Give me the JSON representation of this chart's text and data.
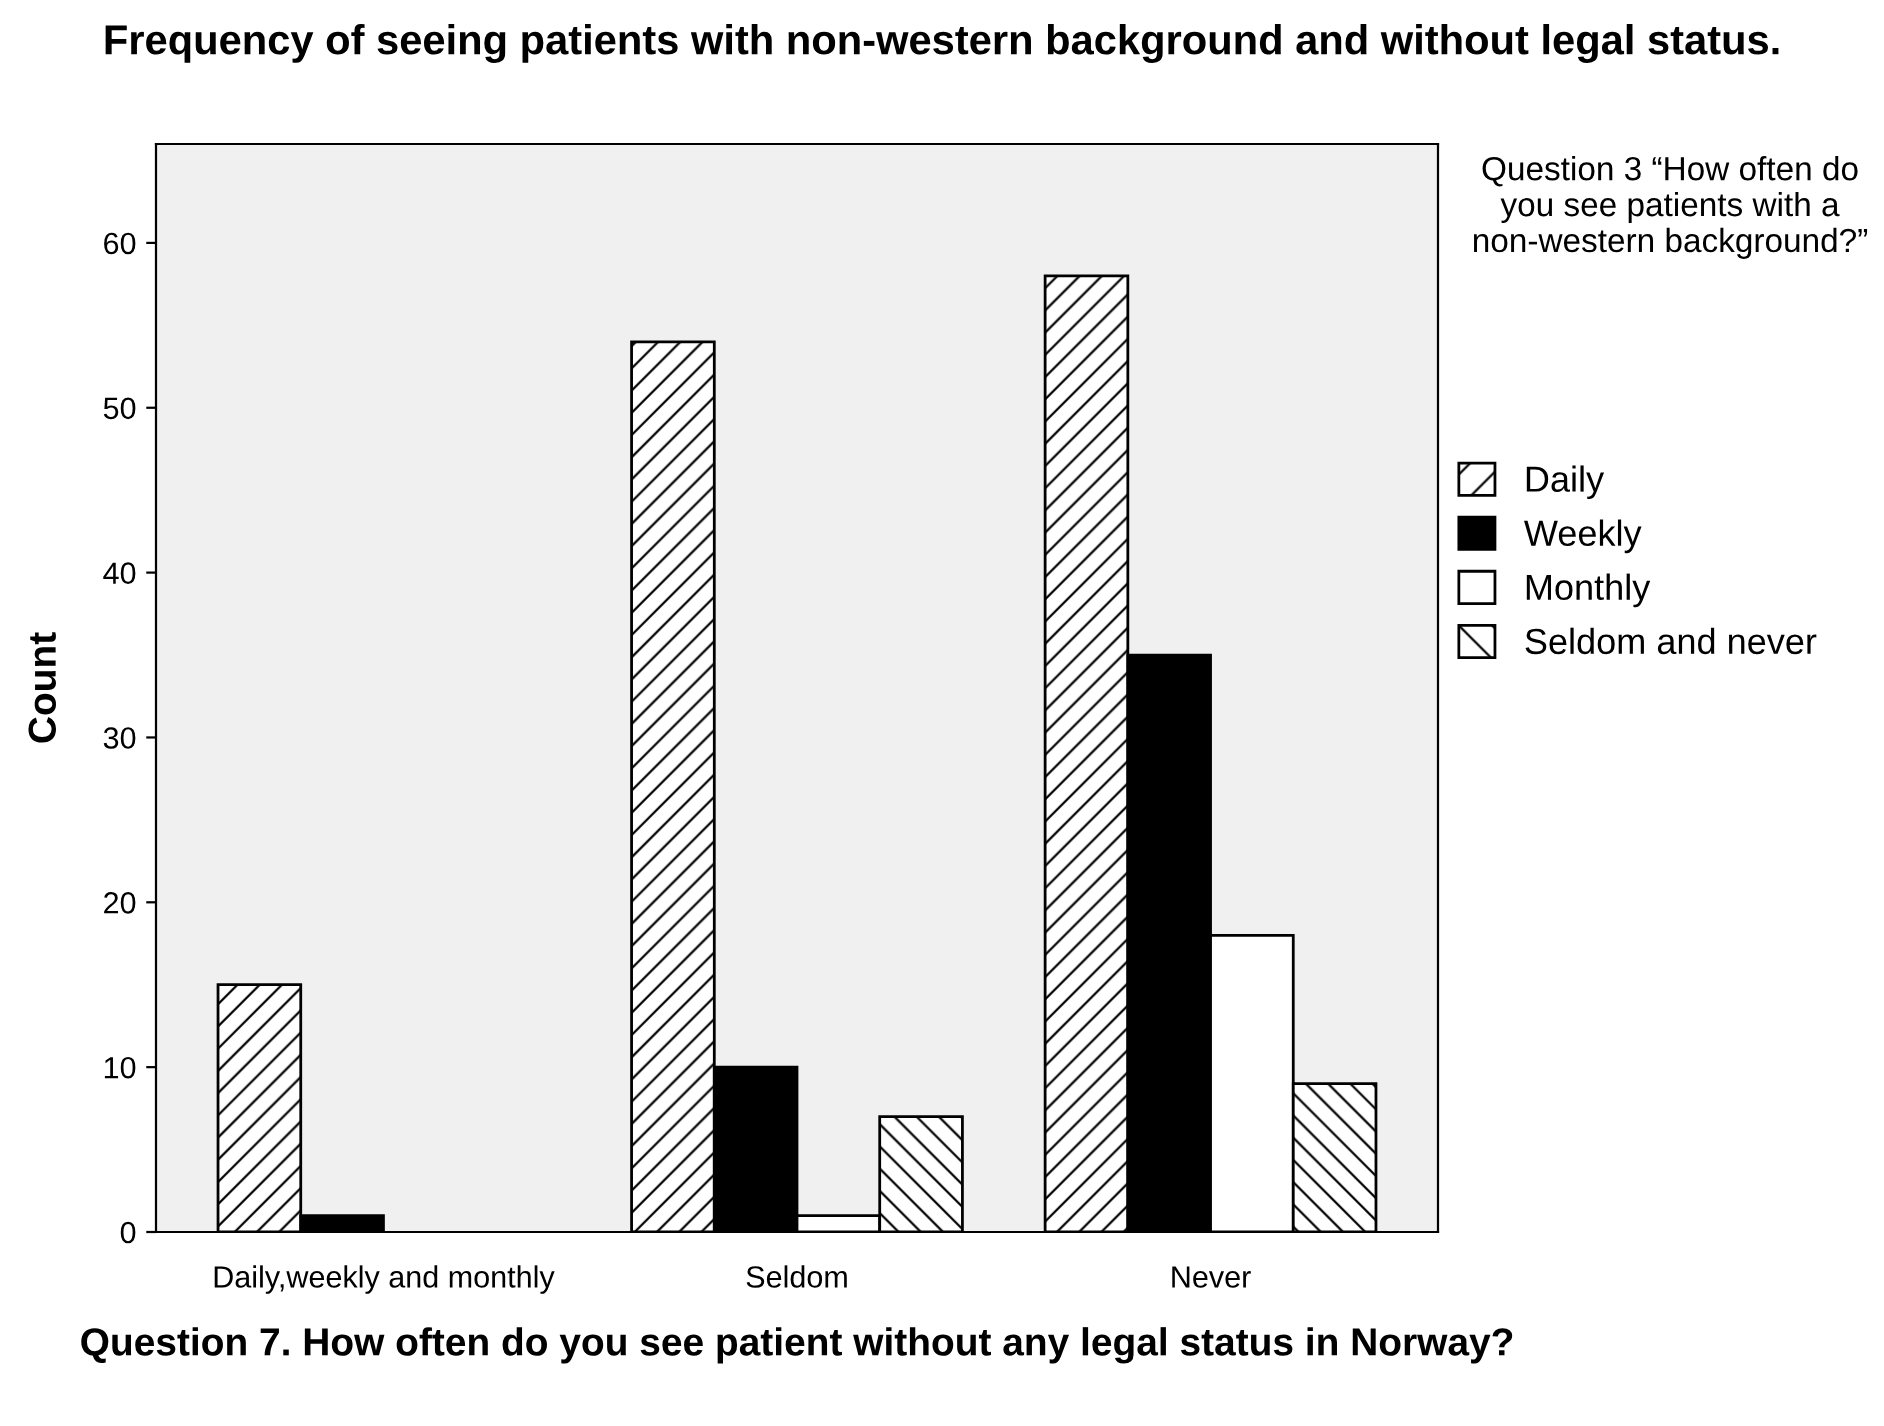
{
  "chart_data": {
    "type": "bar",
    "title": "Frequency of seeing patients with non-western background and without legal status.",
    "xlabel": "Question 7. How often do you see patient without any legal status in Norway?",
    "ylabel": "Count",
    "legend_title": "Question 3 “How often do you see patients with a non-western background?”",
    "categories": [
      "Daily,weekly and monthly",
      "Seldom",
      "Never"
    ],
    "series": [
      {
        "name": "Daily",
        "color": "#000000",
        "values": [
          15,
          54,
          58
        ]
      },
      {
        "name": "Weekly",
        "color": "#000000",
        "values": [
          1,
          10,
          35
        ]
      },
      {
        "name": "Monthly",
        "color": "#ffffff",
        "values": [
          null,
          1,
          18
        ]
      },
      {
        "name": "Seldom and never",
        "color": "#000000",
        "values": [
          null,
          7,
          9
        ]
      }
    ],
    "ylim": [
      0,
      66
    ],
    "yticks": [
      0,
      10,
      20,
      30,
      40,
      50,
      60
    ],
    "grid": false,
    "legend": "top right"
  }
}
